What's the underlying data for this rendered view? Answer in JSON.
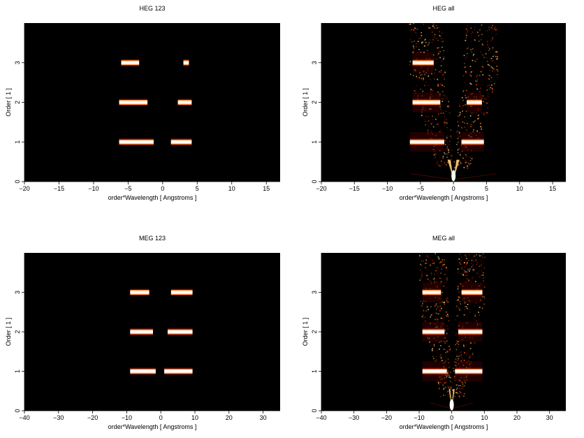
{
  "chart_data": [
    {
      "type": "heatmap",
      "title": "HEG 123",
      "xlabel": "order*Wavelength [ Angstroms ]",
      "ylabel": "Order [ 1 ]",
      "xlim": [
        -20,
        17
      ],
      "ylim": [
        0,
        4
      ],
      "xticks": [
        -20,
        -15,
        -10,
        -5,
        0,
        5,
        10,
        15
      ],
      "yticks": [
        0,
        1,
        2,
        3
      ],
      "background": "#000000",
      "colormap": [
        "#3a0000",
        "#a01800",
        "#ff6a00",
        "#ffd27a",
        "#ffffff"
      ],
      "streaks": [
        {
          "order": 3,
          "x_start": -6.0,
          "x_end": -3.4
        },
        {
          "order": 3,
          "x_start": 3.0,
          "x_end": 3.8
        },
        {
          "order": 2,
          "x_start": -6.3,
          "x_end": -2.2
        },
        {
          "order": 2,
          "x_start": 2.2,
          "x_end": 4.2
        },
        {
          "order": 1,
          "x_start": -6.3,
          "x_end": -1.3
        },
        {
          "order": 1,
          "x_start": 1.2,
          "x_end": 4.2
        }
      ]
    },
    {
      "type": "heatmap",
      "title": "HEG all",
      "xlabel": "order*Wavelength [ Angstroms ]",
      "ylabel": "Order [ 1 ]",
      "xlim": [
        -20,
        17
      ],
      "ylim": [
        0,
        4
      ],
      "xticks": [
        -20,
        -15,
        -10,
        -5,
        0,
        5,
        10,
        15
      ],
      "yticks": [
        0,
        1,
        2,
        3
      ],
      "background": "#000000",
      "colormap": [
        "#3a0000",
        "#a01800",
        "#ff6a00",
        "#ffd27a",
        "#ffffff"
      ],
      "streaks": [
        {
          "order": 3,
          "x_start": -6.2,
          "x_end": -3.0
        },
        {
          "order": 2,
          "x_start": -6.2,
          "x_end": -2.0
        },
        {
          "order": 2,
          "x_start": 2.0,
          "x_end": 4.3
        },
        {
          "order": 1,
          "x_start": -6.6,
          "x_end": -1.4
        },
        {
          "order": 1,
          "x_start": 1.2,
          "x_end": 4.6
        }
      ]
    },
    {
      "type": "heatmap",
      "title": "MEG 123",
      "xlabel": "order*Wavelength [ Angstroms ]",
      "ylabel": "Order [ 1 ]",
      "xlim": [
        -40,
        35
      ],
      "ylim": [
        0,
        4
      ],
      "xticks": [
        -40,
        -30,
        -20,
        -10,
        0,
        10,
        20,
        30
      ],
      "yticks": [
        0,
        1,
        2,
        3
      ],
      "background": "#000000",
      "colormap": [
        "#3a0000",
        "#a01800",
        "#ff6a00",
        "#ffd27a",
        "#ffffff"
      ],
      "streaks": [
        {
          "order": 3,
          "x_start": -9.0,
          "x_end": -3.4
        },
        {
          "order": 3,
          "x_start": 3.0,
          "x_end": 9.3
        },
        {
          "order": 2,
          "x_start": -9.0,
          "x_end": -2.3
        },
        {
          "order": 2,
          "x_start": 2.0,
          "x_end": 9.3
        },
        {
          "order": 1,
          "x_start": -9.0,
          "x_end": -1.5
        },
        {
          "order": 1,
          "x_start": 1.0,
          "x_end": 9.3
        }
      ]
    },
    {
      "type": "heatmap",
      "title": "MEG all",
      "xlabel": "order*Wavelength [ Angstroms ]",
      "ylabel": "Order [ 1 ]",
      "xlim": [
        -40,
        35
      ],
      "ylim": [
        0,
        4
      ],
      "xticks": [
        -40,
        -30,
        -20,
        -10,
        0,
        10,
        20,
        30
      ],
      "yticks": [
        0,
        1,
        2,
        3
      ],
      "background": "#000000",
      "colormap": [
        "#3a0000",
        "#a01800",
        "#ff6a00",
        "#ffd27a",
        "#ffffff"
      ],
      "streaks": [
        {
          "order": 3,
          "x_start": -9.0,
          "x_end": -3.3
        },
        {
          "order": 3,
          "x_start": 3.0,
          "x_end": 9.4
        },
        {
          "order": 2,
          "x_start": -9.0,
          "x_end": -2.2
        },
        {
          "order": 2,
          "x_start": 2.0,
          "x_end": 9.4
        },
        {
          "order": 1,
          "x_start": -9.0,
          "x_end": -1.5
        },
        {
          "order": 1,
          "x_start": 1.0,
          "x_end": 9.4
        }
      ]
    }
  ]
}
